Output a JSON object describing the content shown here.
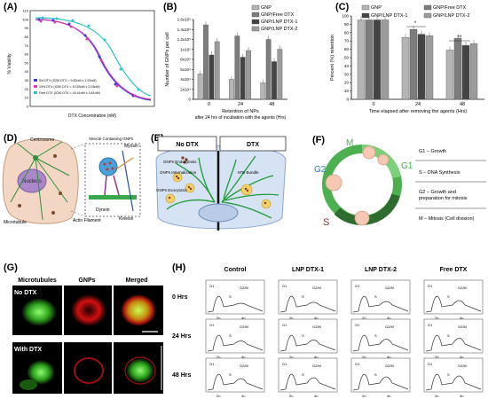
{
  "figure": {
    "panel_labels": [
      "(A)",
      "(B)",
      "(C)",
      "(D)",
      "(E)",
      "(F)",
      "(G)",
      "(H)"
    ]
  },
  "panelA": {
    "ylabel": "% Viability",
    "xlabel": "DTX Concentration (nM)",
    "yticks": [
      "0",
      "10",
      "20",
      "30",
      "40",
      "50",
      "60",
      "70",
      "80",
      "90",
      "100",
      "110"
    ],
    "legend": [
      {
        "text": "5% DTX (IC50 DTX = 9.82nM ± 1.92nM)",
        "color": "#3b3bd6"
      },
      {
        "text": "10% DTX (IC50 DTX = 10.53nM ± 2.03nM)",
        "color": "#d63bb0"
      },
      {
        "text": "Free DTX (IC50 DTX = 44.41nM ± 3.61nM)",
        "color": "#2ec4c8"
      }
    ]
  },
  "panelB": {
    "chart_data": {
      "type": "bar",
      "ylabel": "Number of GNPs per cell",
      "xlabel": "Retention of NPs",
      "xlabel2": "after 24 hrs of incubation with the agents (Hrs)",
      "categories": [
        "0",
        "24",
        "48"
      ],
      "ylim": [
        0,
        180000
      ],
      "yticks": [
        "0",
        "2x10⁴",
        "4x10⁴",
        "6x10⁴",
        "8x10⁴",
        "1x10⁵",
        "1.2x10⁵",
        "1.4x10⁵",
        "1.6x10⁵"
      ],
      "series": [
        {
          "name": "GNP",
          "values": [
            57000,
            45000,
            37000
          ]
        },
        {
          "name": "GNP/Free DTX",
          "values": [
            168000,
            143000,
            135000
          ]
        },
        {
          "name": "GNP/LNP DTX-1",
          "values": [
            100000,
            95000,
            85000
          ]
        },
        {
          "name": "GNP/LNP DTX-2",
          "values": [
            130000,
            110000,
            113000
          ]
        }
      ]
    }
  },
  "panelC": {
    "chart_data": {
      "type": "bar",
      "ylabel": "Percent (%) retention",
      "xlabel": "Time elapsed after removing the agents (Hrs)",
      "categories": [
        "0",
        "24",
        "48"
      ],
      "ylim": [
        0,
        105
      ],
      "yticks": [
        "0",
        "10",
        "20",
        "30",
        "40",
        "50",
        "60",
        "70",
        "80",
        "90",
        "100"
      ],
      "series": [
        {
          "name": "GNP",
          "values": [
            100,
            78,
            62
          ]
        },
        {
          "name": "GNP/Free DTX",
          "values": [
            100,
            88,
            77
          ]
        },
        {
          "name": "GNP/LNP DTX-1",
          "values": [
            100,
            82,
            68
          ]
        },
        {
          "name": "GNP/LNP DTX-2",
          "values": [
            100,
            80,
            70
          ]
        }
      ],
      "significance": [
        "*",
        "**"
      ]
    }
  },
  "panelD": {
    "labels": [
      "Centrosome",
      "Vesicle Containing GNPs",
      "Myosin",
      "Nucleus",
      "Microtubule",
      "Actin Filament",
      "Dynein",
      "Kinesin"
    ]
  },
  "panelE": {
    "left_title": "No DTX",
    "right_title": "DTX",
    "labels": [
      "GNPs Endocytosis",
      "GNPs Internalization",
      "GNPs Exocytosis",
      "MTs Bundle"
    ]
  },
  "panelF": {
    "phase_letters": [
      "M",
      "G2",
      "G1",
      "S"
    ],
    "descriptions": [
      "G1 – Growth",
      "S – DNA Synthesis",
      "G2 – Growth and preparation for mitosis",
      "M – Mitosis (Cell division)"
    ]
  },
  "panelG": {
    "col_headers": [
      "Microtubules",
      "GNPs",
      "Merged"
    ],
    "row_labels": [
      "No DTX",
      "With DTX"
    ]
  },
  "panelH": {
    "col_headers": [
      "Control",
      "LNP DTX-1",
      "LNP DTX-2",
      "Free DTX"
    ],
    "row_labels": [
      "0 Hrs",
      "24 Hrs",
      "48 Hrs"
    ],
    "axis_labels": [
      "2n",
      "4n"
    ],
    "phase_labels": [
      "G1",
      "S",
      "G2/M"
    ]
  }
}
